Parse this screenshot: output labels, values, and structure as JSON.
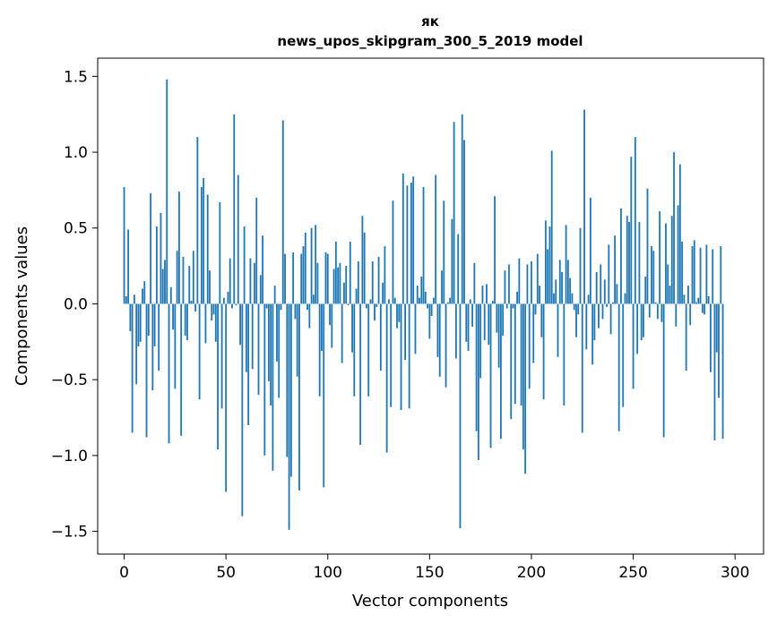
{
  "chart_data": {
    "type": "bar",
    "title": "як",
    "subtitle": "news_upos_skipgram_300_5_2019 model",
    "xlabel": "Vector components",
    "ylabel": "Components values",
    "xlim": [
      -13,
      314
    ],
    "ylim": [
      -1.65,
      1.62
    ],
    "xticks": [
      0,
      50,
      100,
      150,
      200,
      250,
      300
    ],
    "yticks": [
      -1.5,
      -1.0,
      -0.5,
      0.0,
      0.5,
      1.0,
      1.5
    ],
    "xtick_labels": [
      "0",
      "50",
      "100",
      "150",
      "200",
      "250",
      "300"
    ],
    "ytick_labels": [
      "−1.5",
      "−1.0",
      "−0.5",
      "0.0",
      "0.5",
      "1.0",
      "1.5"
    ],
    "bar_color": "#1f77b4",
    "grid": false,
    "values": [
      0.77,
      0.05,
      0.49,
      -0.18,
      -0.85,
      0.06,
      -0.53,
      -0.28,
      -0.25,
      0.1,
      0.15,
      -0.88,
      -0.21,
      0.73,
      -0.57,
      -0.28,
      0.51,
      -0.44,
      0.6,
      0.23,
      0.29,
      1.48,
      -0.92,
      0.11,
      -0.17,
      -0.56,
      0.35,
      0.74,
      -0.87,
      0.31,
      -0.21,
      -0.24,
      0.25,
      0.02,
      0.35,
      -0.05,
      1.1,
      -0.63,
      0.77,
      0.83,
      -0.26,
      0.72,
      0.22,
      -0.11,
      -0.07,
      -0.25,
      -0.96,
      0.67,
      -0.69,
      0.04,
      -1.24,
      0.08,
      0.3,
      -0.03,
      1.25,
      -0.01,
      0.85,
      -0.27,
      -1.4,
      0.51,
      -0.45,
      -0.8,
      0.3,
      -0.43,
      0.27,
      0.7,
      -0.6,
      0.19,
      0.45,
      -1.0,
      -0.03,
      -0.51,
      -0.67,
      -1.1,
      0.12,
      -0.38,
      -0.62,
      -0.04,
      1.21,
      0.33,
      -1.01,
      -1.49,
      -1.14,
      0.34,
      -0.1,
      -0.48,
      -1.23,
      0.33,
      0.38,
      0.47,
      -0.04,
      -0.16,
      0.5,
      0.06,
      0.52,
      0.27,
      -0.61,
      -0.31,
      -1.21,
      0.34,
      0.33,
      -0.14,
      -0.29,
      0.23,
      0.41,
      0.24,
      0.27,
      -0.39,
      0.14,
      0.25,
      -0.01,
      0.41,
      -0.32,
      -0.61,
      0.1,
      0.28,
      -0.93,
      0.58,
      0.47,
      -0.03,
      -0.61,
      0.03,
      0.28,
      -0.11,
      -0.02,
      0.31,
      -0.44,
      0.14,
      0.38,
      -0.98,
      0.03,
      -0.68,
      0.68,
      0.04,
      -0.16,
      -0.12,
      -0.7,
      0.86,
      -0.37,
      0.78,
      -0.69,
      0.8,
      0.84,
      -0.33,
      0.12,
      0.04,
      0.18,
      0.77,
      0.08,
      -0.03,
      -0.23,
      -0.08,
      0.04,
      0.85,
      -0.35,
      -0.48,
      0.22,
      0.68,
      -0.55,
      0.01,
      0.04,
      0.56,
      1.2,
      -0.36,
      0.46,
      -1.48,
      1.25,
      1.08,
      -0.25,
      -0.31,
      0.03,
      -0.15,
      0.27,
      -0.84,
      -1.03,
      -0.49,
      0.12,
      -0.24,
      0.13,
      -0.27,
      -0.95,
      0.02,
      0.71,
      -0.19,
      -0.42,
      -0.89,
      -0.21,
      0.22,
      -0.03,
      0.26,
      -0.76,
      -0.03,
      -0.66,
      0.08,
      0.3,
      -0.67,
      -0.96,
      -1.12,
      0.26,
      -0.56,
      0.28,
      -0.39,
      -0.07,
      0.33,
      0.12,
      -0.22,
      -0.63,
      0.55,
      0.36,
      0.51,
      1.01,
      0.07,
      0.16,
      -0.35,
      0.29,
      0.21,
      -0.67,
      0.52,
      0.29,
      0.17,
      0.07,
      -0.04,
      -0.22,
      -0.07,
      0.5,
      -0.85,
      1.28,
      -0.3,
      0.06,
      0.7,
      -0.4,
      -0.24,
      0.21,
      -0.16,
      0.26,
      -0.1,
      0.16,
      -0.02,
      0.39,
      -0.2,
      0.01,
      0.45,
      0.13,
      -0.84,
      0.63,
      -0.68,
      0.07,
      0.58,
      0.54,
      0.97,
      -0.56,
      1.1,
      -0.33,
      0.54,
      -0.24,
      -0.22,
      0.18,
      0.76,
      -0.09,
      0.38,
      0.35,
      0.01,
      -0.1,
      0.61,
      -0.12,
      -0.88,
      0.53,
      0.26,
      0.12,
      0.58,
      1.0,
      -0.15,
      0.65,
      0.92,
      0.41,
      0.06,
      -0.44,
      0.12,
      -0.14,
      0.38,
      0.42,
      0.01,
      0.04,
      0.37,
      -0.06,
      -0.07,
      0.39,
      0.05,
      -0.45,
      0.36,
      -0.9,
      -0.32,
      -0.62,
      0.38,
      -0.89
    ]
  }
}
